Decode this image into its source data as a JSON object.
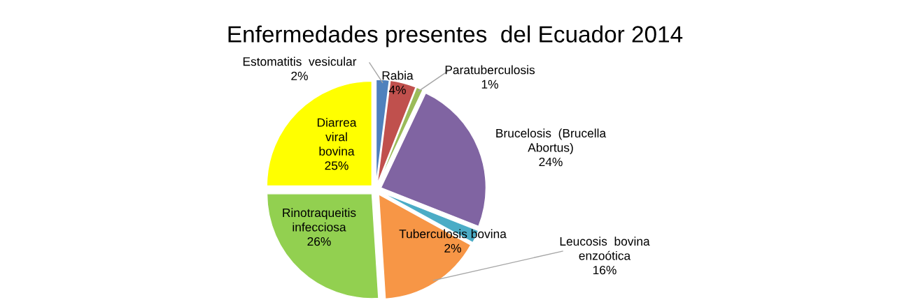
{
  "chart_data": {
    "type": "pie",
    "title": "Enfermedades presentes  del Ecuador 2014",
    "categories": [
      "Estomatitis  vesicular",
      "Rabia",
      "Paratuberculosis",
      "Brucelosis  (Brucella\nAbortus)",
      "Tuberculosis bovina",
      "Leucosis  bovina\nenzoótica",
      "Rinotraqueitis\ninfecciosa",
      "Diarrea\nviral\nbovina"
    ],
    "values": [
      2,
      4,
      1,
      24,
      2,
      16,
      26,
      25
    ],
    "value_labels": [
      "2%",
      "4%",
      "1%",
      "24%",
      "2%",
      "16%",
      "26%",
      "25%"
    ],
    "colors": [
      "#4f81bd",
      "#c0504d",
      "#9bbb59",
      "#8064a2",
      "#4bacc6",
      "#f79646",
      "#92d050",
      "#ffff00"
    ],
    "legend": false
  }
}
